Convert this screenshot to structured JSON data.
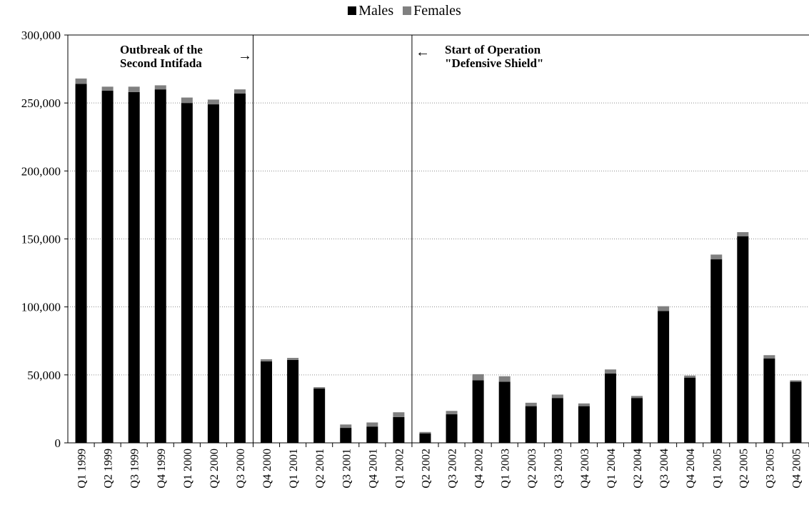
{
  "chart_data": {
    "type": "bar",
    "stacked": true,
    "title": "",
    "xlabel": "",
    "ylabel": "",
    "ylim": [
      0,
      300000
    ],
    "yticks": [
      0,
      50000,
      100000,
      150000,
      200000,
      250000,
      300000
    ],
    "ytick_labels": [
      "0",
      "50,000",
      "100,000",
      "150,000",
      "200,000",
      "250,000",
      "300,000"
    ],
    "grid": "horizontal-dotted",
    "legend": "top-center",
    "categories": [
      "Q1 1999",
      "Q2 1999",
      "Q3 1999",
      "Q4 1999",
      "Q1 2000",
      "Q2 2000",
      "Q3 2000",
      "Q4 2000",
      "Q1 2001",
      "Q2 2001",
      "Q3 2001",
      "Q4 2001",
      "Q1 2002",
      "Q2 2002",
      "Q3 2002",
      "Q4 2002",
      "Q1 2003",
      "Q2 2003",
      "Q3 2003",
      "Q4 2003",
      "Q1 2004",
      "Q2 2004",
      "Q3 2004",
      "Q4 2004",
      "Q1 2005",
      "Q2 2005",
      "Q3 2005",
      "Q4 2005"
    ],
    "series": [
      {
        "name": "Males",
        "color": "#000000",
        "values": [
          264000,
          259000,
          258000,
          260000,
          250000,
          249000,
          257000,
          60000,
          61000,
          40000,
          11000,
          12000,
          19000,
          7000,
          21000,
          46000,
          45000,
          27000,
          33000,
          27000,
          51000,
          33000,
          97000,
          48000,
          135000,
          152000,
          62000,
          45000
        ]
      },
      {
        "name": "Females",
        "color": "#808080",
        "values": [
          4000,
          3000,
          4000,
          3000,
          4000,
          3500,
          3000,
          1500,
          1500,
          1000,
          2500,
          3000,
          3500,
          1000,
          2500,
          4500,
          4000,
          2500,
          2500,
          2000,
          3000,
          1500,
          3500,
          1500,
          3500,
          3000,
          2500,
          1000
        ]
      }
    ],
    "annotations": [
      {
        "text": "Outbreak of the\nSecond Intifada",
        "arrow": "→"
      },
      {
        "text": "Start of Operation\n\"Defensive Shield\"",
        "arrow": "←"
      }
    ],
    "dividers_after_category": [
      "Q3 2000",
      "Q1 2002"
    ]
  }
}
